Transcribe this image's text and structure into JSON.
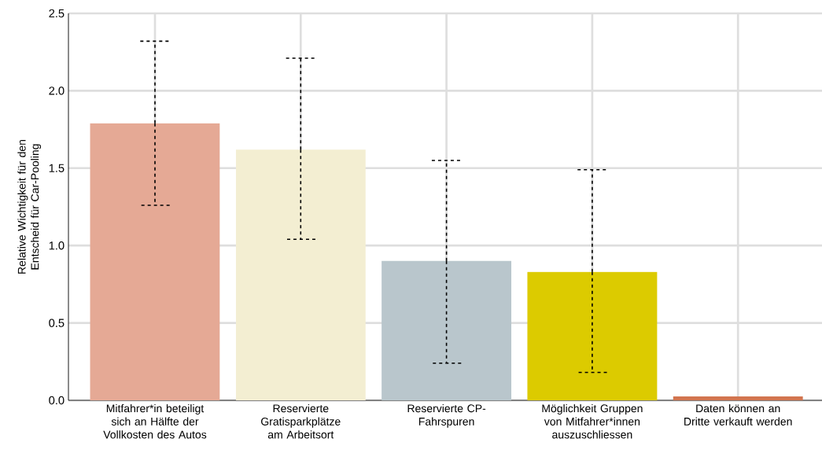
{
  "chart_data": {
    "type": "bar",
    "ylabel": "Relative Wichtigkeit für den Entscheid für Car-Pooling",
    "categories": [
      "Mitfahrer*in beteiligt sich an Hälfte der Vollkosten des Autos",
      "Reservierte Gratisparkplätze am Arbeitsort",
      "Reservierte CP-Fahrspuren",
      "Möglichkeit Gruppen von Mitfahrer*innen auszuschliessen",
      "Daten können an Dritte verkauft werden"
    ],
    "values": [
      1.79,
      1.62,
      0.9,
      0.83,
      0.025
    ],
    "colors": [
      "#e5a995",
      "#f3eed2",
      "#b9c6cc",
      "#dccb00",
      "#d2754f"
    ],
    "errors": [
      [
        1.26,
        2.32
      ],
      [
        1.04,
        2.21
      ],
      [
        0.24,
        1.55
      ],
      [
        0.18,
        1.49
      ],
      null
    ],
    "ylim": [
      0,
      2.5
    ],
    "yticks": [
      {
        "value": 0,
        "label": "0.0"
      },
      {
        "value": 0.5,
        "label": "0.5"
      },
      {
        "value": 1,
        "label": "1.0"
      },
      {
        "value": 1.5,
        "label": "1.5"
      },
      {
        "value": 2,
        "label": "2.0"
      },
      {
        "value": 2.5,
        "label": "2.5"
      }
    ],
    "grid": true
  }
}
